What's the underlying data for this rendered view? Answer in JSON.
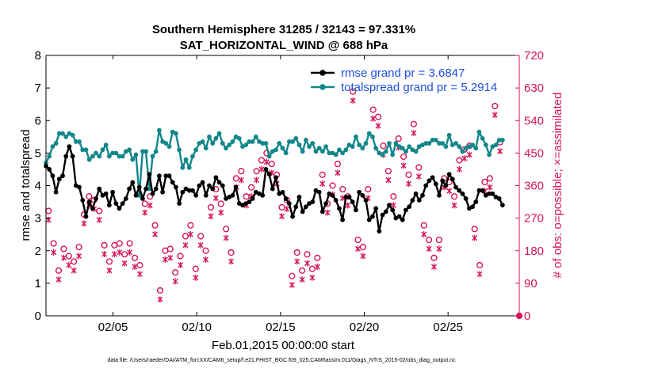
{
  "chart_data": {
    "type": "line",
    "title": "Southern Hemisphere 31285 / 32143 = 97.331%",
    "subtitle": "SAT_HORIZONTAL_WIND @ 688 hPa",
    "xlabel": "Feb.01,2015 00:00:00 start",
    "ylabel": "rmse and totalspread",
    "y2label": "# of obs: o=possible; ×=assimilated",
    "footnote": "data file: /Users/raeder/DAI/ATM_forcXX/CAM6_setup/f.e21.FHIST_BGC.f09_025.CAM6assim.011/Diags_NTrS_2015-02/obs_diag_output.nc",
    "xlim": [
      1.0,
      29.25
    ],
    "ylim": [
      0,
      8
    ],
    "y2lim": [
      0,
      720
    ],
    "x_ticks": [
      5,
      10,
      15,
      20,
      25
    ],
    "x_tick_labels": [
      "02/05",
      "02/10",
      "02/15",
      "02/20",
      "02/25"
    ],
    "y_ticks": [
      0,
      1,
      2,
      3,
      4,
      5,
      6,
      7,
      8
    ],
    "y_tick_labels": [
      "0",
      "1",
      "2",
      "3",
      "4",
      "5",
      "6",
      "7",
      "8"
    ],
    "y2_ticks": [
      0,
      90,
      180,
      270,
      360,
      450,
      540,
      630,
      720
    ],
    "y2_tick_labels": [
      "0",
      "90",
      "180",
      "270",
      "360",
      "450",
      "540",
      "630",
      "720"
    ],
    "colors": {
      "rmse": "#000000",
      "spread": "#12878a",
      "obs": "#d6145a",
      "axis": "#000000"
    },
    "legend_position": "top-right",
    "series": [
      {
        "name": "rmse grand pr = 3.6847",
        "axis": "left",
        "marker": "filled-circle",
        "values": [
          4.6,
          4.5,
          4.3,
          3.8,
          4.2,
          4.3,
          4.9,
          5.2,
          4.9,
          4.0,
          3.95,
          3.55,
          3.05,
          3.5,
          3.3,
          3.6,
          3.9,
          3.7,
          3.75,
          3.4,
          3.8,
          3.45,
          3.3,
          3.45,
          3.6,
          3.9,
          4.1,
          3.7,
          3.95,
          3.6,
          3.9,
          4.35,
          3.75,
          3.9,
          4.3,
          3.8,
          4.3,
          4.3,
          4.1,
          3.95,
          3.45,
          3.8,
          3.9,
          3.85,
          3.85,
          3.7,
          4.0,
          4.1,
          3.7,
          4.0,
          3.9,
          4.25,
          4.1,
          4.0,
          3.6,
          3.65,
          3.7,
          3.95,
          3.45,
          3.4,
          3.45,
          3.5,
          3.6,
          3.8,
          3.75,
          3.7,
          4.5,
          4.35,
          3.9,
          4.25,
          3.75,
          3.8,
          3.6,
          3.45,
          3.05,
          3.35,
          3.65,
          3.2,
          3.35,
          3.45,
          3.5,
          3.85,
          3.8,
          3.2,
          3.45,
          3.75,
          3.7,
          3.55,
          3.3,
          2.95,
          3.65,
          3.65,
          3.5,
          3.25,
          3.8,
          3.7,
          3.55,
          2.95,
          3.05,
          3.3,
          2.6,
          3.1,
          3.2,
          3.4,
          3.25,
          3.0,
          3.05,
          2.95,
          3.25,
          3.35,
          3.55,
          3.75,
          3.55,
          3.7,
          4.0,
          4.15,
          4.25,
          4.05,
          3.7,
          4.15,
          4.0,
          4.35,
          4.2,
          3.95,
          3.85,
          3.75,
          3.6,
          3.3,
          3.35,
          3.5,
          3.85,
          3.85,
          3.7,
          3.75,
          3.75,
          3.65,
          3.6,
          3.4
        ]
      },
      {
        "name": "totalspread grand pr = 5.2914",
        "axis": "left",
        "marker": "filled-circle",
        "values": [
          4.7,
          4.9,
          5.2,
          5.3,
          5.6,
          5.6,
          5.5,
          5.6,
          5.55,
          5.35,
          5.35,
          5.1,
          5.1,
          4.8,
          4.9,
          5.0,
          4.9,
          5.1,
          5.25,
          4.9,
          5.0,
          5.0,
          4.9,
          4.9,
          5.05,
          5.1,
          4.8,
          4.95,
          3.7,
          5.05,
          5.05,
          3.9,
          4.9,
          5.05,
          5.7,
          5.35,
          5.3,
          5.2,
          5.65,
          5.6,
          5.1,
          4.55,
          4.8,
          4.55,
          4.9,
          5.1,
          5.3,
          5.35,
          5.15,
          5.5,
          5.3,
          5.45,
          5.6,
          5.3,
          5.15,
          5.25,
          5.35,
          5.5,
          5.45,
          5.2,
          5.25,
          5.35,
          5.35,
          5.5,
          5.35,
          5.3,
          5.3,
          4.9,
          5.05,
          5.1,
          5.3,
          5.15,
          5.0,
          5.35,
          5.35,
          5.45,
          5.25,
          5.05,
          5.4,
          5.2,
          5.3,
          5.05,
          5.15,
          5.05,
          5.2,
          5.0,
          5.0,
          4.95,
          5.1,
          5.0,
          5.1,
          5.25,
          5.2,
          5.5,
          5.25,
          5.15,
          5.3,
          5.6,
          5.5,
          5.15,
          5.0,
          4.95,
          5.05,
          5.3,
          4.95,
          5.3,
          5.2,
          5.15,
          5.05,
          5.2,
          5.1,
          5.05,
          5.2,
          5.25,
          5.3,
          5.3,
          5.4,
          5.4,
          5.3,
          5.3,
          5.2,
          5.55,
          5.25,
          5.3,
          5.2,
          5.05,
          5.15,
          5.2,
          5.25,
          5.15,
          5.65,
          5.45,
          5.25,
          4.95,
          5.2,
          5.25,
          5.4,
          5.4
        ]
      },
      {
        "name": "# of obs possible",
        "axis": "right",
        "marker": "open-circle",
        "values": [
          290,
          200,
          125,
          185,
          165,
          150,
          190,
          280,
          330,
          320,
          290,
          195,
          150,
          195,
          200,
          170,
          200,
          160,
          140,
          310,
          330,
          250,
          70,
          180,
          185,
          120,
          165,
          220,
          250,
          130,
          220,
          180,
          300,
          350,
          310,
          240,
          175,
          380,
          400,
          330,
          355,
          400,
          430,
          450,
          420,
          390,
          300,
          320,
          110,
          175,
          125,
          170,
          130,
          160,
          390,
          310,
          360,
          420,
          350,
          330,
          620,
          210,
          190,
          350,
          570,
          550,
          470,
          400,
          330,
          490,
          440,
          390,
          530,
          410,
          250,
          210,
          160,
          210,
          380,
          370,
          330,
          430,
          460,
          470,
          240,
          140,
          370,
          380,
          580,
          480
        ]
      },
      {
        "name": "# of obs assimilated",
        "axis": "right",
        "marker": "x",
        "values": [
          285,
          195,
          120,
          180,
          160,
          145,
          185,
          275,
          325,
          315,
          285,
          190,
          145,
          190,
          195,
          165,
          195,
          155,
          135,
          305,
          325,
          245,
          65,
          175,
          180,
          115,
          160,
          215,
          245,
          125,
          215,
          175,
          295,
          345,
          305,
          235,
          170,
          375,
          395,
          325,
          350,
          395,
          425,
          445,
          415,
          385,
          295,
          315,
          105,
          170,
          120,
          165,
          125,
          155,
          385,
          305,
          355,
          415,
          345,
          325,
          615,
          205,
          185,
          345,
          565,
          545,
          465,
          395,
          325,
          485,
          435,
          385,
          525,
          405,
          245,
          205,
          155,
          205,
          375,
          365,
          325,
          425,
          455,
          465,
          235,
          135,
          365,
          375,
          575,
          475
        ]
      }
    ]
  }
}
